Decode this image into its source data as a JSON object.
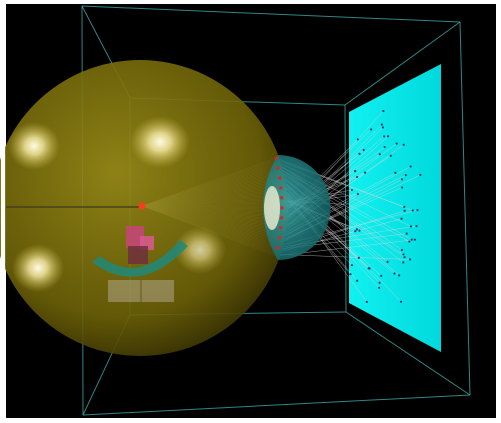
{
  "scene": {
    "background_color": "#000000",
    "frame_color": "#ffffff",
    "wireframe_color": "#3fa6a6",
    "sphere_color": "#8a7d10",
    "highlight_color": "#fff8e0",
    "lens_color": "#1e8c8c",
    "screen_color": "#00e5e5",
    "ray_color": "#d8d8d8",
    "source_color": "#ff3b1f",
    "hit_marker_color": "#e0202a",
    "screen_dot_color": "#1a3c6e",
    "arc_color": "#1f8a7a",
    "block_color": "#c8447a",
    "cylinder_color": "#b0a58a",
    "ray_count": 60
  }
}
